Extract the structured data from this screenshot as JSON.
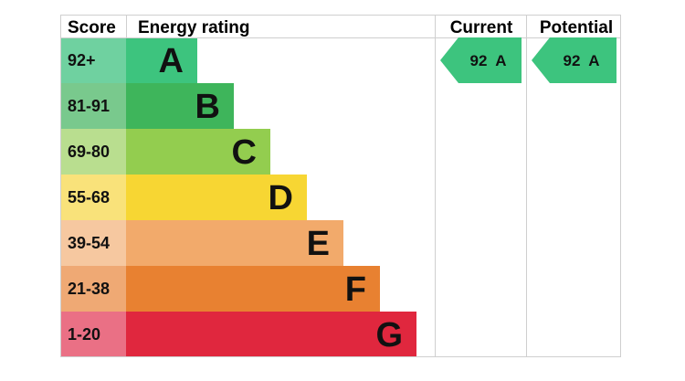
{
  "chart_data": {
    "type": "bar",
    "headers": {
      "score": "Score",
      "rating": "Energy rating",
      "current": "Current",
      "potential": "Potential"
    },
    "bands": [
      {
        "letter": "A",
        "range": "92+",
        "color": "#3dc47e",
        "score_color": "#6fd1a0"
      },
      {
        "letter": "B",
        "range": "81-91",
        "color": "#3eb55b",
        "score_color": "#79c98d"
      },
      {
        "letter": "C",
        "range": "69-80",
        "color": "#93cd4f",
        "score_color": "#b9de8f"
      },
      {
        "letter": "D",
        "range": "55-68",
        "color": "#f7d633",
        "score_color": "#f9e27a"
      },
      {
        "letter": "E",
        "range": "39-54",
        "color": "#f2aa6b",
        "score_color": "#f6c8a0"
      },
      {
        "letter": "F",
        "range": "21-38",
        "color": "#e88131",
        "score_color": "#efa974"
      },
      {
        "letter": "G",
        "range": "1-20",
        "color": "#e0273e",
        "score_color": "#ea7085"
      }
    ],
    "current": {
      "value": 92,
      "letter": "A",
      "label": "92  A",
      "color": "#3dc47e"
    },
    "potential": {
      "value": 92,
      "letter": "A",
      "label": "92  A",
      "color": "#3dc47e"
    }
  }
}
